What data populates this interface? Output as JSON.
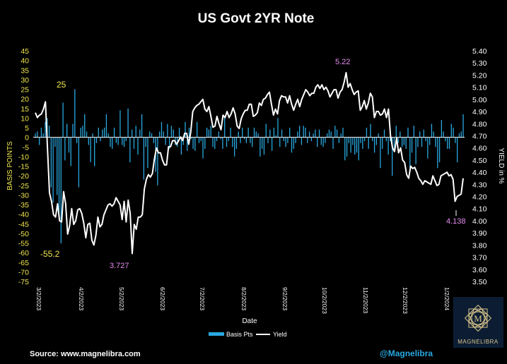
{
  "chart_data": {
    "type": "bar+line",
    "title": "US Govt 2YR Note",
    "xlabel": "Date",
    "ylabel_left": "BASIS POINTS",
    "ylabel_right": "YIELD in %",
    "left_axis": {
      "ylim": [
        -75,
        45
      ],
      "ticks": [
        "45",
        "40",
        "35",
        "30",
        "25",
        "20",
        "15",
        "10",
        "5",
        "0",
        "-5",
        "-10",
        "-15",
        "-20",
        "-25",
        "-30",
        "-35",
        "-40",
        "-45",
        "-50",
        "-55",
        "-60",
        "-65",
        "-70",
        "-75"
      ]
    },
    "right_axis": {
      "ylim": [
        3.5,
        5.4
      ],
      "ticks": [
        "5.40",
        "5.30",
        "5.20",
        "5.10",
        "5.00",
        "4.90",
        "4.80",
        "4.70",
        "4.60",
        "4.50",
        "4.40",
        "4.30",
        "4.20",
        "4.10",
        "4.00",
        "3.90",
        "3.80",
        "3.70",
        "3.60",
        "3.50"
      ]
    },
    "x_ticks": [
      "3/2/2023",
      "4/2/2023",
      "5/2/2023",
      "6/2/2023",
      "7/2/2023",
      "8/2/2023",
      "9/2/2023",
      "10/2/2023",
      "11/2/2023",
      "12/2/2023",
      "1/2/2024"
    ],
    "series": [
      {
        "name": "Yield",
        "axis": "right",
        "color": "#ffffff",
        "values": [
          4.89,
          4.85,
          4.87,
          4.88,
          4.92,
          4.98,
          4.6,
          4.23,
          4.16,
          4.05,
          4.03,
          4.14,
          4.0,
          3.99,
          4.24,
          4.14,
          3.89,
          3.96,
          4.1,
          3.97,
          4.0,
          4.09,
          4.1,
          4.06,
          3.98,
          3.86,
          3.97,
          3.98,
          3.84,
          3.8,
          3.88,
          4.03,
          3.95,
          3.97,
          4.05,
          4.09,
          4.13,
          4.14,
          4.12,
          4.14,
          4.19,
          4.16,
          4.13,
          4.01,
          4.16,
          3.99,
          4.17,
          4.06,
          3.73,
          3.97,
          3.93,
          4.03,
          4.03,
          4.05,
          4.26,
          4.34,
          4.38,
          4.36,
          4.39,
          4.51,
          4.6,
          4.56,
          4.56,
          4.5,
          4.46,
          4.46,
          4.61,
          4.61,
          4.66,
          4.66,
          4.63,
          4.66,
          4.69,
          4.66,
          4.72,
          4.72,
          4.63,
          4.73,
          4.9,
          4.93,
          4.95,
          4.96,
          4.98,
          5.0,
          4.92,
          4.9,
          4.94,
          4.86,
          4.77,
          4.78,
          4.86,
          4.8,
          4.75,
          4.87,
          4.85,
          4.9,
          4.85,
          4.88,
          4.93,
          4.88,
          4.78,
          4.76,
          4.84,
          4.88,
          4.91,
          4.91,
          4.96,
          4.96,
          4.86,
          4.87,
          4.89,
          4.97,
          4.95,
          5.0,
          5.01,
          5.04,
          5.06,
          4.96,
          4.87,
          4.92,
          4.88,
          4.99,
          5.03,
          5.02,
          5.02,
          4.97,
          5.03,
          4.96,
          4.91,
          4.96,
          5.0,
          4.94,
          5.0,
          5.04,
          5.08,
          5.06,
          5.03,
          5.05,
          5.05,
          5.1,
          5.12,
          5.09,
          5.12,
          5.08,
          5.1,
          5.07,
          5.02,
          5.05,
          5.08,
          5.08,
          5.01,
          5.06,
          5.08,
          5.14,
          5.22,
          5.1,
          5.13,
          5.08,
          5.04,
          5.06,
          5.07,
          4.91,
          4.94,
          4.99,
          4.92,
          4.97,
          5.05,
          5.02,
          4.85,
          4.9,
          4.9,
          4.87,
          4.88,
          4.92,
          4.85,
          4.92,
          4.7,
          4.6,
          4.57,
          4.68,
          4.56,
          4.6,
          4.5,
          4.48,
          4.38,
          4.35,
          4.45,
          4.43,
          4.44,
          4.4,
          4.35,
          4.33,
          4.3,
          4.33,
          4.32,
          4.31,
          4.3,
          4.37,
          4.33,
          4.29,
          4.3,
          4.37,
          4.38,
          4.39,
          4.4,
          4.37,
          4.38,
          4.34,
          4.16,
          4.2,
          4.21,
          4.22,
          4.35
        ]
      },
      {
        "name": "Basis Pts",
        "axis": "left",
        "color": "#29a8e0",
        "values": [
          2.0,
          3.0,
          -4.0,
          5.0,
          2.0,
          8.0,
          10.0,
          6.0,
          -26.0,
          -34.0,
          -5.0,
          -30.0,
          -42.0,
          -55.2,
          18.0,
          -12.0,
          7.0,
          -8.0,
          -15.0,
          7.0,
          25.0,
          -3.0,
          -26.0,
          5.0,
          6.0,
          12.0,
          3.0,
          -4.0,
          -13.0,
          2.0,
          -15.0,
          -3.0,
          5.0,
          -2.0,
          4.0,
          5.0,
          12.0,
          2.0,
          -5.0,
          -6.0,
          5.0,
          -3.0,
          -4.0,
          14.0,
          -4.0,
          -5.0,
          -2.0,
          15.0,
          -13.0,
          4.0,
          -6.0,
          6.0,
          -9.0,
          4.0,
          12.0,
          -22.0,
          -5.0,
          -16.0,
          3.0,
          2.0,
          -3.0,
          -18.0,
          -25.0,
          3.0,
          8.0,
          3.0,
          -4.0,
          7.0,
          -6.0,
          6.0,
          4.0,
          -4.0,
          -5.0,
          5.0,
          -9.0,
          -4.0,
          8.0,
          -7.0,
          5.0,
          -1.0,
          -6.0,
          -7.0,
          8.0,
          -3.0,
          -2.0,
          -11.0,
          -6.0,
          5.0,
          4.0,
          6.0,
          -5.0,
          -6.0,
          -2.0,
          3.0,
          -1.0,
          -6.0,
          11.0,
          -5.0,
          -2.0,
          5.0,
          -5.0,
          -10.0,
          -6.0,
          3.0,
          -3.0,
          5.0,
          -1.0,
          -3.0,
          5.0,
          -3.0,
          -5.0,
          5.0,
          3.0,
          2.0,
          -10.0,
          -6.0,
          -9.0,
          7.0,
          -3.0,
          4.0,
          -7.0,
          5.0,
          1.0,
          10.0,
          -5.0,
          4.0,
          -2.0,
          -5.0,
          -3.0,
          5.0,
          -8.0,
          -6.0,
          -3.0,
          3.0,
          6.0,
          -4.0,
          6.0,
          5.0,
          -3.0,
          3.0,
          -2.0,
          2.0,
          4.0,
          -5.0,
          4.0,
          -4.0,
          -5.0,
          -3.0,
          2.0,
          4.0,
          3.0,
          -6.0,
          6.0,
          4.0,
          -3.0,
          2.0,
          5.0,
          -12.0,
          -10.0,
          -3.0,
          -8.0,
          -4.0,
          -9.0,
          -8.0,
          -12.0,
          -3.0,
          -6.0,
          -2.0,
          5.0,
          -6.0,
          7.0,
          -2.0,
          -8.0,
          -4.0,
          2.0,
          -16.0,
          -6.0,
          4.0,
          -2.0,
          -9.0,
          -2.0,
          -20.0,
          -6.0,
          6.0,
          -3.0,
          3.0,
          -5.0,
          -4.0,
          -6.0,
          5.0,
          -16.0,
          -8.0,
          6.0,
          -14.0,
          -5.0,
          3.0,
          -5.0,
          4.0,
          -2.0,
          -11.0,
          -4.0,
          7.0,
          3.0,
          -5.0,
          -16.0,
          -13.0,
          9.0,
          3.0,
          -2.0,
          -6.0,
          -6.0,
          7.0,
          5.0,
          -3.0,
          -13.0,
          2.0,
          3.0,
          12.0
        ]
      }
    ],
    "annotations": [
      {
        "text": "25",
        "color": "#f2e94e"
      },
      {
        "text": "-55.2",
        "color": "#f2e94e"
      },
      {
        "text": "3.727",
        "color": "#e48cf0"
      },
      {
        "text": "5.22",
        "color": "#e48cf0"
      },
      {
        "text": "4.138",
        "color": "#e48cf0"
      }
    ],
    "legend": {
      "placement": "bottom-center",
      "items": [
        "Basis Pts",
        "Yield"
      ]
    }
  },
  "footer": {
    "source": "Source: www.magnelibra.com",
    "handle": "@Magnelibra",
    "logo_text": "MAGNELIBRA",
    "logo_mark": "M"
  },
  "colors": {
    "background": "#000000",
    "bars": "#29a8e0",
    "line": "#ffffff",
    "left_axis": "#f2e94e",
    "annotation_pink": "#e48cf0",
    "handle": "#29a8e0"
  }
}
